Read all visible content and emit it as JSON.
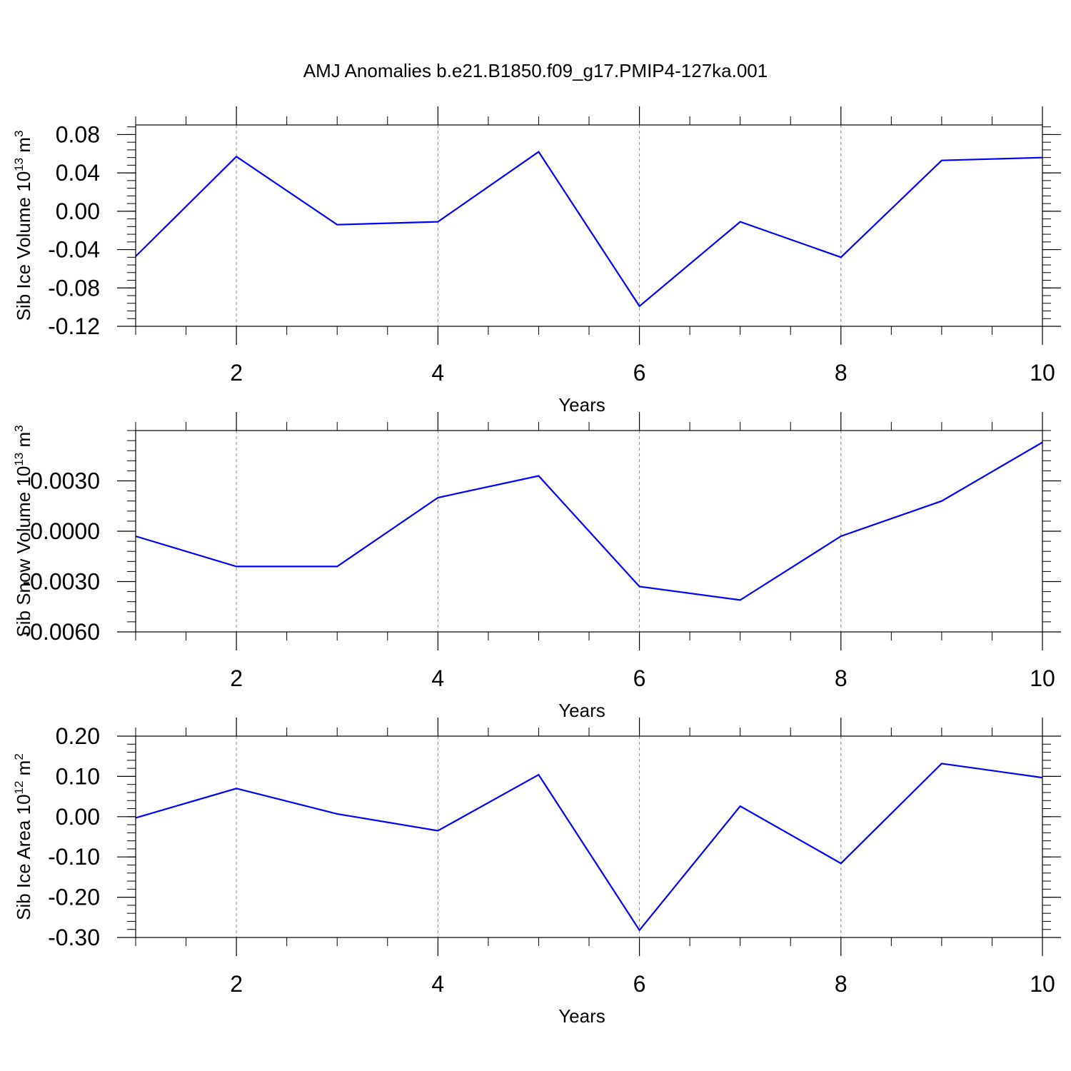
{
  "title": "AMJ Anomalies b.e21.B1850.f09_g17.PMIP4-127ka.001",
  "colors": {
    "line": "#0000ff",
    "axis": "#000000",
    "grid": "#888888"
  },
  "chart_data": [
    {
      "type": "line",
      "xlabel": "Years",
      "ylabel": "Sib Ice Volume 10",
      "ylabel_sup1": "13",
      "ylabel_unit": " m",
      "ylabel_sup2": "3",
      "xlim": [
        1,
        10
      ],
      "ylim": [
        -0.12,
        0.09
      ],
      "xticks": [
        2,
        4,
        6,
        8,
        10
      ],
      "xtick_labels": [
        "2",
        "4",
        "6",
        "8",
        "10"
      ],
      "yticks": [
        -0.12,
        -0.08,
        -0.04,
        0.0,
        0.04,
        0.08
      ],
      "ytick_labels": [
        "-0.12",
        "-0.08",
        "-0.04",
        "0.00",
        "0.04",
        "0.08"
      ],
      "grid": "vertical dashed at major x ticks",
      "series": [
        {
          "x": [
            1,
            2,
            3,
            4,
            5,
            6,
            7,
            8,
            9,
            10
          ],
          "values": [
            -0.047,
            0.057,
            -0.014,
            -0.011,
            0.062,
            -0.099,
            -0.011,
            -0.048,
            0.053,
            0.056
          ]
        }
      ]
    },
    {
      "type": "line",
      "xlabel": "Years",
      "ylabel": "Sib Snow Volume 10",
      "ylabel_sup1": "13",
      "ylabel_unit": " m",
      "ylabel_sup2": "3",
      "xlim": [
        1,
        10
      ],
      "ylim": [
        -0.006,
        0.006
      ],
      "xticks": [
        2,
        4,
        6,
        8,
        10
      ],
      "xtick_labels": [
        "2",
        "4",
        "6",
        "8",
        "10"
      ],
      "yticks": [
        -0.006,
        -0.003,
        0.0,
        0.003
      ],
      "ytick_labels": [
        "-0.0060",
        "-0.0030",
        "0.0000",
        "0.0030"
      ],
      "grid": "vertical dashed at major x ticks",
      "series": [
        {
          "x": [
            1,
            2,
            3,
            4,
            5,
            6,
            7,
            8,
            9,
            10
          ],
          "values": [
            -0.0003,
            -0.0021,
            -0.0021,
            0.002,
            0.0033,
            -0.0033,
            -0.0041,
            -0.0003,
            0.0018,
            0.0053
          ]
        }
      ]
    },
    {
      "type": "line",
      "xlabel": "Years",
      "ylabel": "Sib Ice Area 10",
      "ylabel_sup1": "12",
      "ylabel_unit": " m",
      "ylabel_sup2": "2",
      "xlim": [
        1,
        10
      ],
      "ylim": [
        -0.3,
        0.2
      ],
      "xticks": [
        2,
        4,
        6,
        8,
        10
      ],
      "xtick_labels": [
        "2",
        "4",
        "6",
        "8",
        "10"
      ],
      "yticks": [
        -0.3,
        -0.2,
        -0.1,
        0.0,
        0.1,
        0.2
      ],
      "ytick_labels": [
        "-0.30",
        "-0.20",
        "-0.10",
        "0.00",
        "0.10",
        "0.20"
      ],
      "grid": "vertical dashed at major x ticks",
      "series": [
        {
          "x": [
            1,
            2,
            3,
            4,
            5,
            6,
            7,
            8,
            9,
            10
          ],
          "values": [
            -0.003,
            0.07,
            0.007,
            -0.035,
            0.104,
            -0.282,
            0.026,
            -0.116,
            0.132,
            0.097
          ]
        }
      ]
    }
  ]
}
